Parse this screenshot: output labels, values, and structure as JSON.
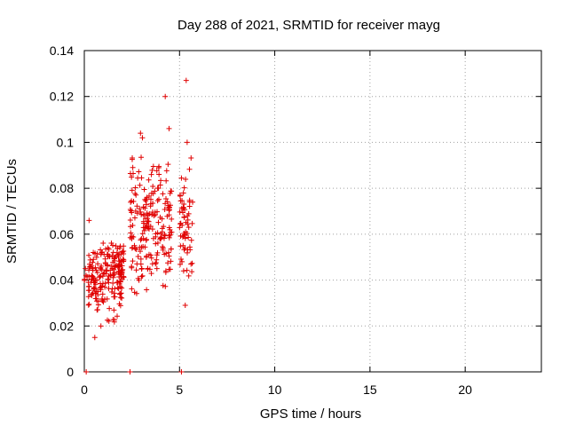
{
  "chart_data": {
    "type": "scatter",
    "title": "Day 288 of 2021, SRMTID for receiver mayg",
    "xlabel": "GPS time / hours",
    "ylabel": "SRMTID / TECUs",
    "xlim": [
      0,
      24
    ],
    "ylim": [
      0,
      0.14
    ],
    "x_ticks": [
      0,
      5,
      10,
      15,
      20
    ],
    "x_tick_labels": [
      "0",
      "5",
      "10",
      "15",
      "20"
    ],
    "y_ticks": [
      0,
      0.02,
      0.04,
      0.06,
      0.08,
      0.1,
      0.12,
      0.14
    ],
    "y_tick_labels": [
      "0",
      "0.02",
      "0.04",
      "0.06",
      "0.08",
      "0.1",
      "0.12",
      "0.14"
    ],
    "grid": true,
    "marker": "+",
    "series_color": "#e00000",
    "axis_color": "#000000",
    "grid_color": "#a0a0a0",
    "zero_points_x": [
      0.1,
      2.4,
      5.1
    ],
    "point_seed": 288,
    "clusters": [
      {
        "x_range": [
          0.0,
          0.15
        ],
        "y_range": [
          0.037,
          0.046
        ],
        "count": 4
      },
      {
        "x_range": [
          0.2,
          2.0
        ],
        "y_range": [
          0.015,
          0.066
        ],
        "count": 200
      },
      {
        "x_range": [
          1.8,
          2.1
        ],
        "y_range": [
          0.032,
          0.066
        ],
        "count": 20
      },
      {
        "x_range": [
          2.4,
          4.6
        ],
        "y_range": [
          0.024,
          0.104
        ],
        "count": 210
      },
      {
        "x_range": [
          5.0,
          5.7
        ],
        "y_range": [
          0.029,
          0.1
        ],
        "count": 60
      }
    ],
    "notable_points": [
      {
        "x": 0.06,
        "y": 0.045
      },
      {
        "x": 0.25,
        "y": 0.066
      },
      {
        "x": 0.55,
        "y": 0.015
      },
      {
        "x": 2.95,
        "y": 0.104
      },
      {
        "x": 3.05,
        "y": 0.102
      },
      {
        "x": 4.25,
        "y": 0.12
      },
      {
        "x": 4.45,
        "y": 0.106
      },
      {
        "x": 5.35,
        "y": 0.127
      },
      {
        "x": 5.4,
        "y": 0.1
      },
      {
        "x": 5.3,
        "y": 0.029
      },
      {
        "x": 5.6,
        "y": 0.047
      }
    ]
  }
}
